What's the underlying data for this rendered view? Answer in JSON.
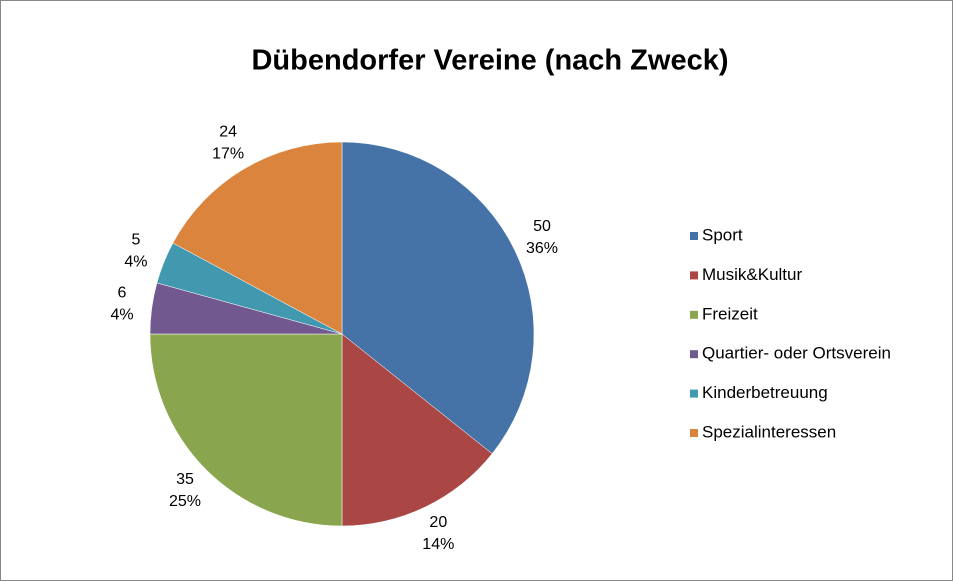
{
  "chart_data": {
    "type": "pie",
    "title": "Dübendorfer Vereine (nach Zweck)",
    "categories": [
      "Sport",
      "Musik&Kultur",
      "Freizeit",
      "Quartier- oder Ortsverein",
      "Kinderbetreuung",
      "Spezialinteressen"
    ],
    "values": [
      50,
      20,
      35,
      6,
      5,
      24
    ],
    "percent_labels": [
      "36%",
      "14%",
      "25%",
      "4%",
      "4%",
      "17%"
    ],
    "colors": [
      "#4572a7",
      "#aa4643",
      "#89a54e",
      "#71588f",
      "#4198af",
      "#db843d"
    ],
    "legend": "right"
  }
}
